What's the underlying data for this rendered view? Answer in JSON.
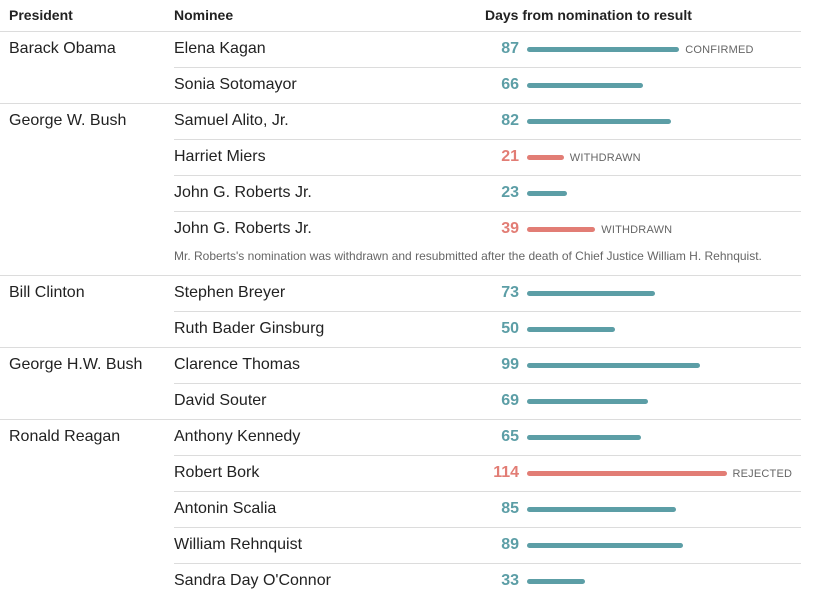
{
  "headers": {
    "president": "President",
    "nominee": "Nominee",
    "days": "Days from nomination to result"
  },
  "colors": {
    "confirmed": "#5c9ea6",
    "not_confirmed": "#e27d75",
    "rule": "#dcdcdc"
  },
  "note": "Mr. Roberts's nomination was withdrawn and resubmitted after the death of Chief Justice William H. Rehnquist.",
  "chart_data": {
    "type": "bar",
    "title": "",
    "xlabel": "Days from nomination to result",
    "rows": [
      {
        "president": "Barack Obama",
        "nominee": "Elena Kagan",
        "days": 87,
        "status": "CONFIRMED",
        "outcome": "confirmed"
      },
      {
        "president": "",
        "nominee": "Sonia Sotomayor",
        "days": 66,
        "status": "",
        "outcome": "confirmed"
      },
      {
        "president": "George W. Bush",
        "nominee": "Samuel Alito, Jr.",
        "days": 82,
        "status": "",
        "outcome": "confirmed"
      },
      {
        "president": "",
        "nominee": "Harriet Miers",
        "days": 21,
        "status": "WITHDRAWN",
        "outcome": "withdrawn"
      },
      {
        "president": "",
        "nominee": "John G. Roberts Jr.",
        "days": 23,
        "status": "",
        "outcome": "confirmed"
      },
      {
        "president": "",
        "nominee": "John G. Roberts Jr.",
        "days": 39,
        "status": "WITHDRAWN",
        "outcome": "withdrawn"
      },
      {
        "president": "Bill Clinton",
        "nominee": "Stephen Breyer",
        "days": 73,
        "status": "",
        "outcome": "confirmed"
      },
      {
        "president": "",
        "nominee": "Ruth Bader Ginsburg",
        "days": 50,
        "status": "",
        "outcome": "confirmed"
      },
      {
        "president": "George H.W. Bush",
        "nominee": "Clarence Thomas",
        "days": 99,
        "status": "",
        "outcome": "confirmed"
      },
      {
        "president": "",
        "nominee": "David Souter",
        "days": 69,
        "status": "",
        "outcome": "confirmed"
      },
      {
        "president": "Ronald Reagan",
        "nominee": "Anthony Kennedy",
        "days": 65,
        "status": "",
        "outcome": "confirmed"
      },
      {
        "president": "",
        "nominee": "Robert Bork",
        "days": 114,
        "status": "REJECTED",
        "outcome": "rejected"
      },
      {
        "president": "",
        "nominee": "Antonin Scalia",
        "days": 85,
        "status": "",
        "outcome": "confirmed"
      },
      {
        "president": "",
        "nominee": "William Rehnquist",
        "days": 89,
        "status": "",
        "outcome": "confirmed"
      },
      {
        "president": "",
        "nominee": "Sandra Day O'Connor",
        "days": 33,
        "status": "",
        "outcome": "confirmed"
      }
    ]
  }
}
